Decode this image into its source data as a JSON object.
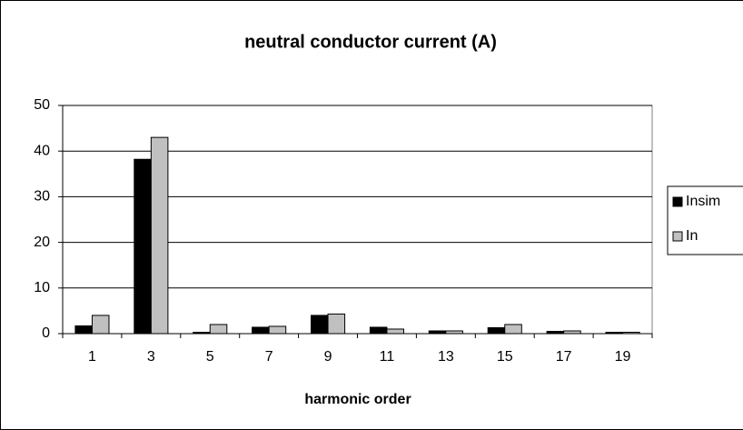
{
  "chart_data": {
    "type": "bar",
    "title": "neutral conductor current (A)",
    "x_label": "harmonic order",
    "categories": [
      "1",
      "3",
      "5",
      "7",
      "9",
      "11",
      "13",
      "15",
      "17",
      "19"
    ],
    "series": [
      {
        "name": "Insim",
        "color": "#000000",
        "values": [
          1.7,
          38.2,
          0.3,
          1.4,
          4.0,
          1.4,
          0.6,
          1.3,
          0.5,
          0.3
        ]
      },
      {
        "name": "In",
        "color": "#c0c0c0",
        "values": [
          4.0,
          43.0,
          2.0,
          1.6,
          4.3,
          1.0,
          0.6,
          2.0,
          0.6,
          0.3
        ]
      }
    ],
    "ylim": [
      0,
      50
    ],
    "yticks": [
      0,
      10,
      20,
      30,
      40,
      50
    ],
    "grid": true,
    "legend": "right"
  }
}
